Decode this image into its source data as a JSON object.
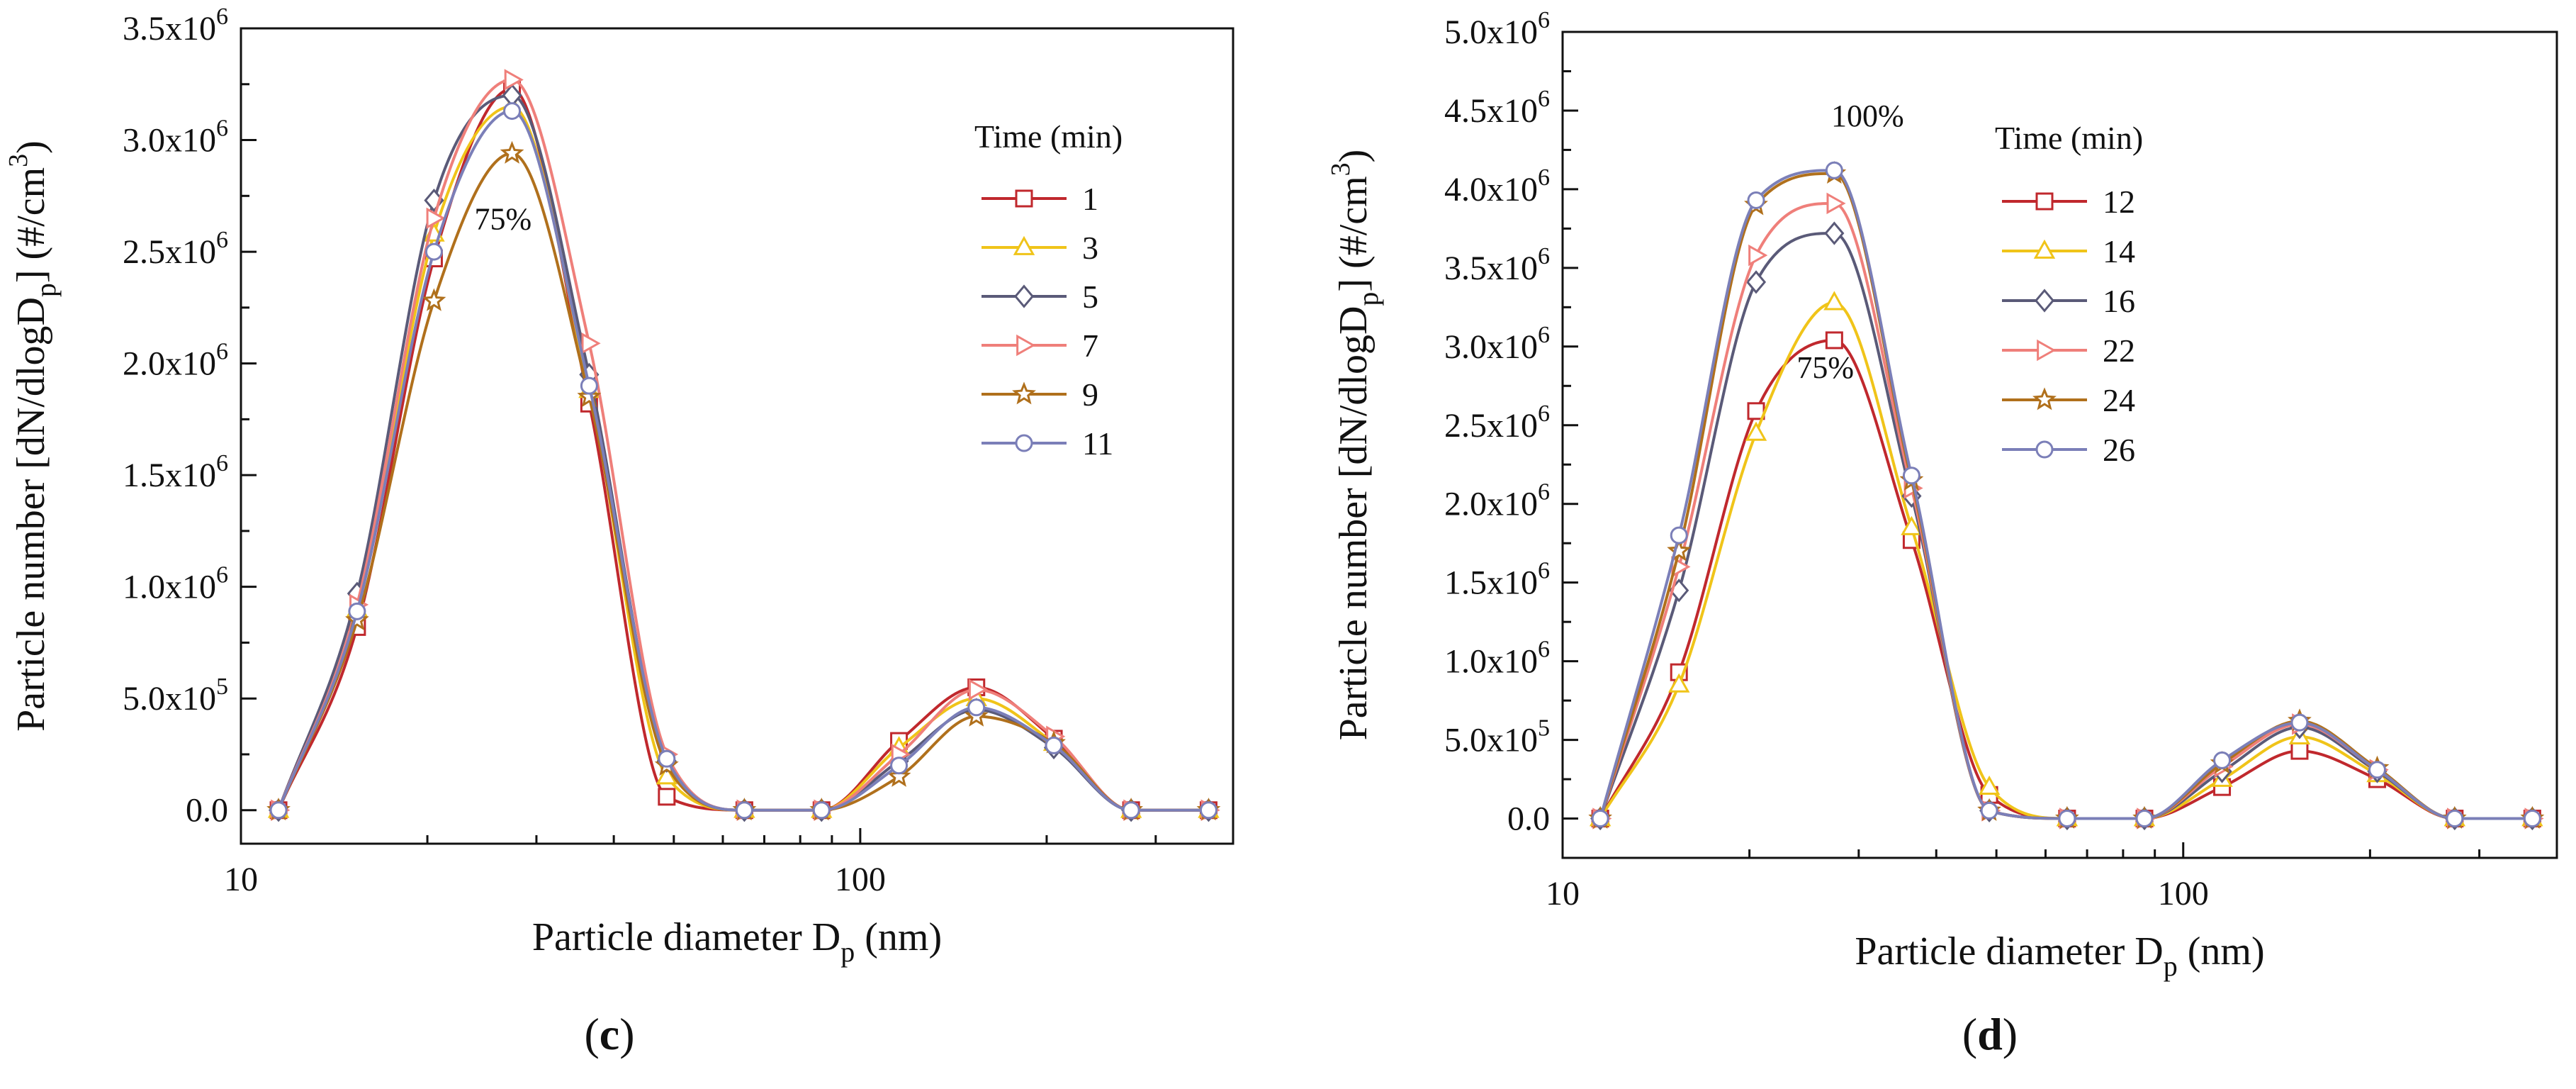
{
  "chart_data": [
    {
      "type": "line",
      "panel": "c",
      "panel_label_open": "(",
      "panel_label_letter": "c",
      "panel_label_close": ")",
      "xscale": "log",
      "xlim": [
        10,
        400
      ],
      "ylim": [
        -150000,
        3500000
      ],
      "x_ticks": [
        {
          "value": 10,
          "label": "10"
        },
        {
          "value": 100,
          "label": "100"
        }
      ],
      "y_ticks": [
        {
          "value": 0,
          "mant": "0.0"
        },
        {
          "value": 500000,
          "mant": "5.0x10",
          "exp": "5"
        },
        {
          "value": 1000000,
          "mant": "1.0x10",
          "exp": "6"
        },
        {
          "value": 1500000,
          "mant": "1.5x10",
          "exp": "6"
        },
        {
          "value": 2000000,
          "mant": "2.0x10",
          "exp": "6"
        },
        {
          "value": 2500000,
          "mant": "2.5x10",
          "exp": "6"
        },
        {
          "value": 3000000,
          "mant": "3.0x10",
          "exp": "6"
        },
        {
          "value": 3500000,
          "mant": "3.5x10",
          "exp": "6"
        }
      ],
      "xlabel": {
        "main": "Particle diameter D",
        "sub": "p",
        "tail": " (nm)"
      },
      "ylabel": {
        "p1": "Particle number [dN/dlogD",
        "sub": "p",
        "p2": "] (#/cm",
        "sup": "3",
        "p3": ")"
      },
      "legend": {
        "title": "Time (min)",
        "position": "top-right"
      },
      "annotations": [
        {
          "text": "75%",
          "x": 26.5,
          "y": 2600000
        }
      ],
      "x": [
        11.5,
        15.4,
        20.5,
        27.4,
        36.5,
        48.7,
        65.0,
        86.6,
        115.5,
        154.0,
        205.4,
        273.8,
        365.2
      ],
      "series": [
        {
          "name": "1",
          "color": "#c0282d",
          "marker": "square",
          "values": [
            0,
            820000,
            2470000,
            3230000,
            1820000,
            60000,
            0,
            0,
            310000,
            550000,
            320000,
            0,
            0
          ]
        },
        {
          "name": "3",
          "color": "#f0c419",
          "marker": "triangle-up",
          "values": [
            0,
            900000,
            2580000,
            3150000,
            1880000,
            150000,
            0,
            0,
            280000,
            500000,
            300000,
            0,
            0
          ]
        },
        {
          "name": "5",
          "color": "#5a5a78",
          "marker": "diamond",
          "values": [
            0,
            970000,
            2730000,
            3200000,
            1950000,
            220000,
            0,
            0,
            220000,
            450000,
            280000,
            0,
            0
          ]
        },
        {
          "name": "7",
          "color": "#ef7f7a",
          "marker": "triangle-right",
          "values": [
            0,
            920000,
            2650000,
            3270000,
            2090000,
            250000,
            0,
            0,
            250000,
            540000,
            330000,
            0,
            0
          ]
        },
        {
          "name": "9",
          "color": "#b0701c",
          "marker": "star",
          "values": [
            0,
            850000,
            2280000,
            2940000,
            1850000,
            200000,
            0,
            0,
            150000,
            420000,
            300000,
            0,
            0
          ]
        },
        {
          "name": "11",
          "color": "#7b7fb8",
          "marker": "circle",
          "values": [
            0,
            890000,
            2500000,
            3130000,
            1900000,
            230000,
            0,
            0,
            200000,
            460000,
            290000,
            0,
            0
          ]
        }
      ]
    },
    {
      "type": "line",
      "panel": "d",
      "panel_label_open": "(",
      "panel_label_letter": "d",
      "panel_label_close": ")",
      "xscale": "log",
      "xlim": [
        10,
        400
      ],
      "ylim": [
        -250000,
        5000000
      ],
      "x_ticks": [
        {
          "value": 10,
          "label": "10"
        },
        {
          "value": 100,
          "label": "100"
        }
      ],
      "y_ticks": [
        {
          "value": 0,
          "mant": "0.0"
        },
        {
          "value": 500000,
          "mant": "5.0x10",
          "exp": "5"
        },
        {
          "value": 1000000,
          "mant": "1.0x10",
          "exp": "6"
        },
        {
          "value": 1500000,
          "mant": "1.5x10",
          "exp": "6"
        },
        {
          "value": 2000000,
          "mant": "2.0x10",
          "exp": "6"
        },
        {
          "value": 2500000,
          "mant": "2.5x10",
          "exp": "6"
        },
        {
          "value": 3000000,
          "mant": "3.0x10",
          "exp": "6"
        },
        {
          "value": 3500000,
          "mant": "3.5x10",
          "exp": "6"
        },
        {
          "value": 4000000,
          "mant": "4.0x10",
          "exp": "6"
        },
        {
          "value": 4500000,
          "mant": "4.5x10",
          "exp": "6"
        },
        {
          "value": 5000000,
          "mant": "5.0x10",
          "exp": "6"
        }
      ],
      "xlabel": {
        "main": "Particle diameter D",
        "sub": "p",
        "tail": " (nm)"
      },
      "ylabel": {
        "p1": "Particle number [dN/dlogD",
        "sub": "p",
        "p2": "] (#/cm",
        "sup": "3",
        "p3": ")"
      },
      "legend": {
        "title": "Time (min)",
        "position": "top-right"
      },
      "annotations": [
        {
          "text": "100%",
          "x": 31.0,
          "y": 4400000
        },
        {
          "text": "75%",
          "x": 26.5,
          "y": 2800000
        }
      ],
      "x": [
        11.5,
        15.4,
        20.5,
        27.4,
        36.5,
        48.7,
        65.0,
        86.6,
        115.5,
        154.0,
        205.4,
        273.8,
        365.2
      ],
      "series": [
        {
          "name": "12",
          "color": "#c0282d",
          "marker": "square",
          "values": [
            0,
            930000,
            2590000,
            3040000,
            1770000,
            150000,
            0,
            0,
            200000,
            430000,
            250000,
            0,
            0
          ]
        },
        {
          "name": "14",
          "color": "#f0c419",
          "marker": "triangle-up",
          "values": [
            0,
            850000,
            2450000,
            3280000,
            1850000,
            200000,
            0,
            0,
            250000,
            520000,
            280000,
            0,
            0
          ]
        },
        {
          "name": "16",
          "color": "#5a5a78",
          "marker": "diamond",
          "values": [
            0,
            1450000,
            3410000,
            3720000,
            2050000,
            50000,
            0,
            0,
            300000,
            580000,
            300000,
            0,
            0
          ]
        },
        {
          "name": "22",
          "color": "#ef7f7a",
          "marker": "triangle-right",
          "values": [
            0,
            1600000,
            3580000,
            3910000,
            2100000,
            50000,
            0,
            0,
            330000,
            600000,
            310000,
            0,
            0
          ]
        },
        {
          "name": "24",
          "color": "#b0701c",
          "marker": "star",
          "values": [
            0,
            1700000,
            3900000,
            4100000,
            2150000,
            50000,
            0,
            0,
            350000,
            620000,
            320000,
            0,
            0
          ]
        },
        {
          "name": "26",
          "color": "#7b7fb8",
          "marker": "circle",
          "values": [
            0,
            1800000,
            3930000,
            4120000,
            2180000,
            50000,
            0,
            0,
            370000,
            610000,
            310000,
            0,
            0
          ]
        }
      ]
    }
  ]
}
